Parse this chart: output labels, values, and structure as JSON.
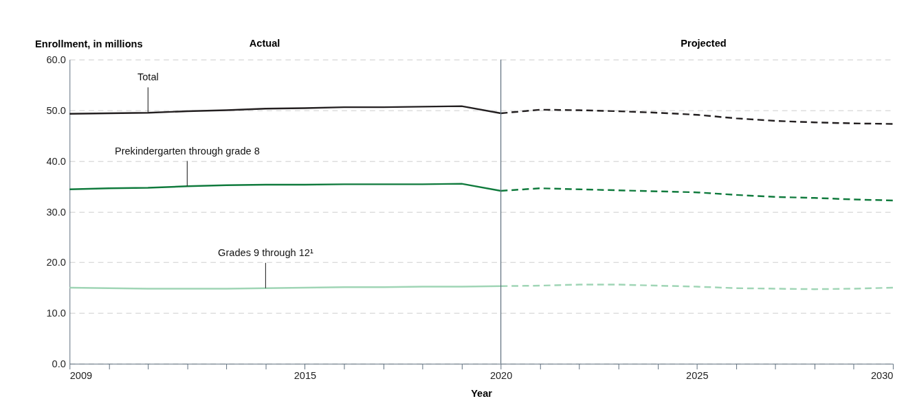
{
  "chart_data": {
    "type": "line",
    "xlabel": "Year",
    "ylabel": "Enrollment, in millions",
    "annotations": [
      "Actual",
      "Projected"
    ],
    "x": [
      2009,
      2010,
      2011,
      2012,
      2013,
      2014,
      2015,
      2016,
      2017,
      2018,
      2019,
      2020
    ],
    "series": [
      {
        "name": "Total",
        "color": "#231f20",
        "line_style": "solid",
        "values": [
          49.3,
          49.4,
          49.5,
          49.8,
          50.0,
          50.3,
          50.4,
          50.6,
          50.6,
          50.7,
          50.8,
          49.4
        ]
      },
      {
        "color": "#231f20",
        "line_style": "dashed",
        "x": [
          2020,
          2021,
          2022,
          2023,
          2024,
          2025,
          2026,
          2027,
          2028,
          2029,
          2030
        ],
        "values": [
          49.4,
          50.1,
          50.0,
          49.8,
          49.5,
          49.1,
          48.4,
          47.9,
          47.6,
          47.4,
          47.3
        ]
      },
      {
        "name": "Prekindergarten through grade 8",
        "color": "#0f7a3c",
        "line_style": "solid",
        "values": [
          34.4,
          34.6,
          34.7,
          35.0,
          35.2,
          35.3,
          35.3,
          35.4,
          35.4,
          35.4,
          35.5,
          34.1
        ]
      },
      {
        "color": "#0f7a3c",
        "line_style": "dashed",
        "x": [
          2020,
          2021,
          2022,
          2023,
          2024,
          2025,
          2026,
          2027,
          2028,
          2029,
          2030
        ],
        "values": [
          34.1,
          34.6,
          34.4,
          34.2,
          34.0,
          33.8,
          33.3,
          32.9,
          32.7,
          32.4,
          32.2
        ]
      },
      {
        "name": "Grades 9 through 12¹",
        "color": "#9fd5b5",
        "line_style": "solid",
        "values": [
          15.0,
          14.9,
          14.8,
          14.8,
          14.8,
          14.9,
          15.0,
          15.1,
          15.1,
          15.2,
          15.2,
          15.3
        ]
      },
      {
        "color": "#9fd5b5",
        "line_style": "dashed",
        "x": [
          2020,
          2021,
          2022,
          2023,
          2024,
          2025,
          2026,
          2027,
          2028,
          2029,
          2030
        ],
        "values": [
          15.3,
          15.4,
          15.6,
          15.6,
          15.4,
          15.2,
          14.9,
          14.8,
          14.7,
          14.8,
          15.0
        ]
      }
    ],
    "xlim": [
      2009,
      2030
    ],
    "xticks": [
      2009,
      {
        "value": 2010,
        "label": null
      },
      {
        "value": 2011,
        "label": null
      },
      {
        "value": 2012,
        "label": null
      },
      {
        "value": 2013,
        "label": null
      },
      {
        "value": 2014,
        "label": null
      },
      2015,
      {
        "value": 2016,
        "label": null
      },
      {
        "value": 2017,
        "label": null
      },
      {
        "value": 2018,
        "label": null
      },
      {
        "value": 2019,
        "label": null
      },
      2020,
      {
        "value": 2021,
        "label": null
      },
      {
        "value": 2022,
        "label": null
      },
      {
        "value": 2023,
        "label": null
      },
      {
        "value": 2024,
        "label": null
      },
      2025,
      {
        "value": 2026,
        "label": null
      },
      {
        "value": 2027,
        "label": null
      },
      {
        "value": 2028,
        "label": null
      },
      {
        "value": 2029,
        "label": null
      },
      2030
    ],
    "ylim": [
      0,
      60
    ],
    "yticks": [
      {
        "value": 0,
        "label": "0.0"
      },
      {
        "value": 10,
        "label": "10.0"
      },
      {
        "value": 20,
        "label": "20.0"
      },
      {
        "value": 30,
        "label": "30.0"
      },
      {
        "value": 40,
        "label": "40.0"
      },
      {
        "value": 50,
        "label": "50.0"
      },
      {
        "value": 60,
        "label": "60.0"
      }
    ],
    "ref_lines": [
      {
        "axis": "x",
        "value": 2020,
        "color": "#5a6b7b"
      }
    ],
    "grid": "y",
    "marker": "none"
  }
}
